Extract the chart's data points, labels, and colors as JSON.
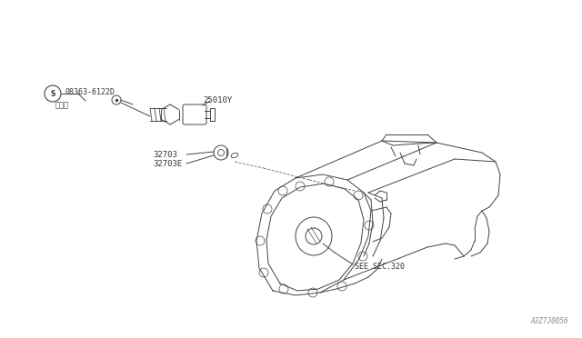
{
  "background_color": "#ffffff",
  "line_color": "#444444",
  "text_color": "#333333",
  "fig_width": 6.4,
  "fig_height": 3.72,
  "dpi": 100,
  "labels": {
    "part1": "08363-6122D",
    "part1_sub": "（１）",
    "part2": "25010Y",
    "part3": "32703",
    "part4": "32703E",
    "see_sec": "SEE SEC.320",
    "drawing_num": "A3Z7J0056"
  },
  "watermark_color": "#888888"
}
